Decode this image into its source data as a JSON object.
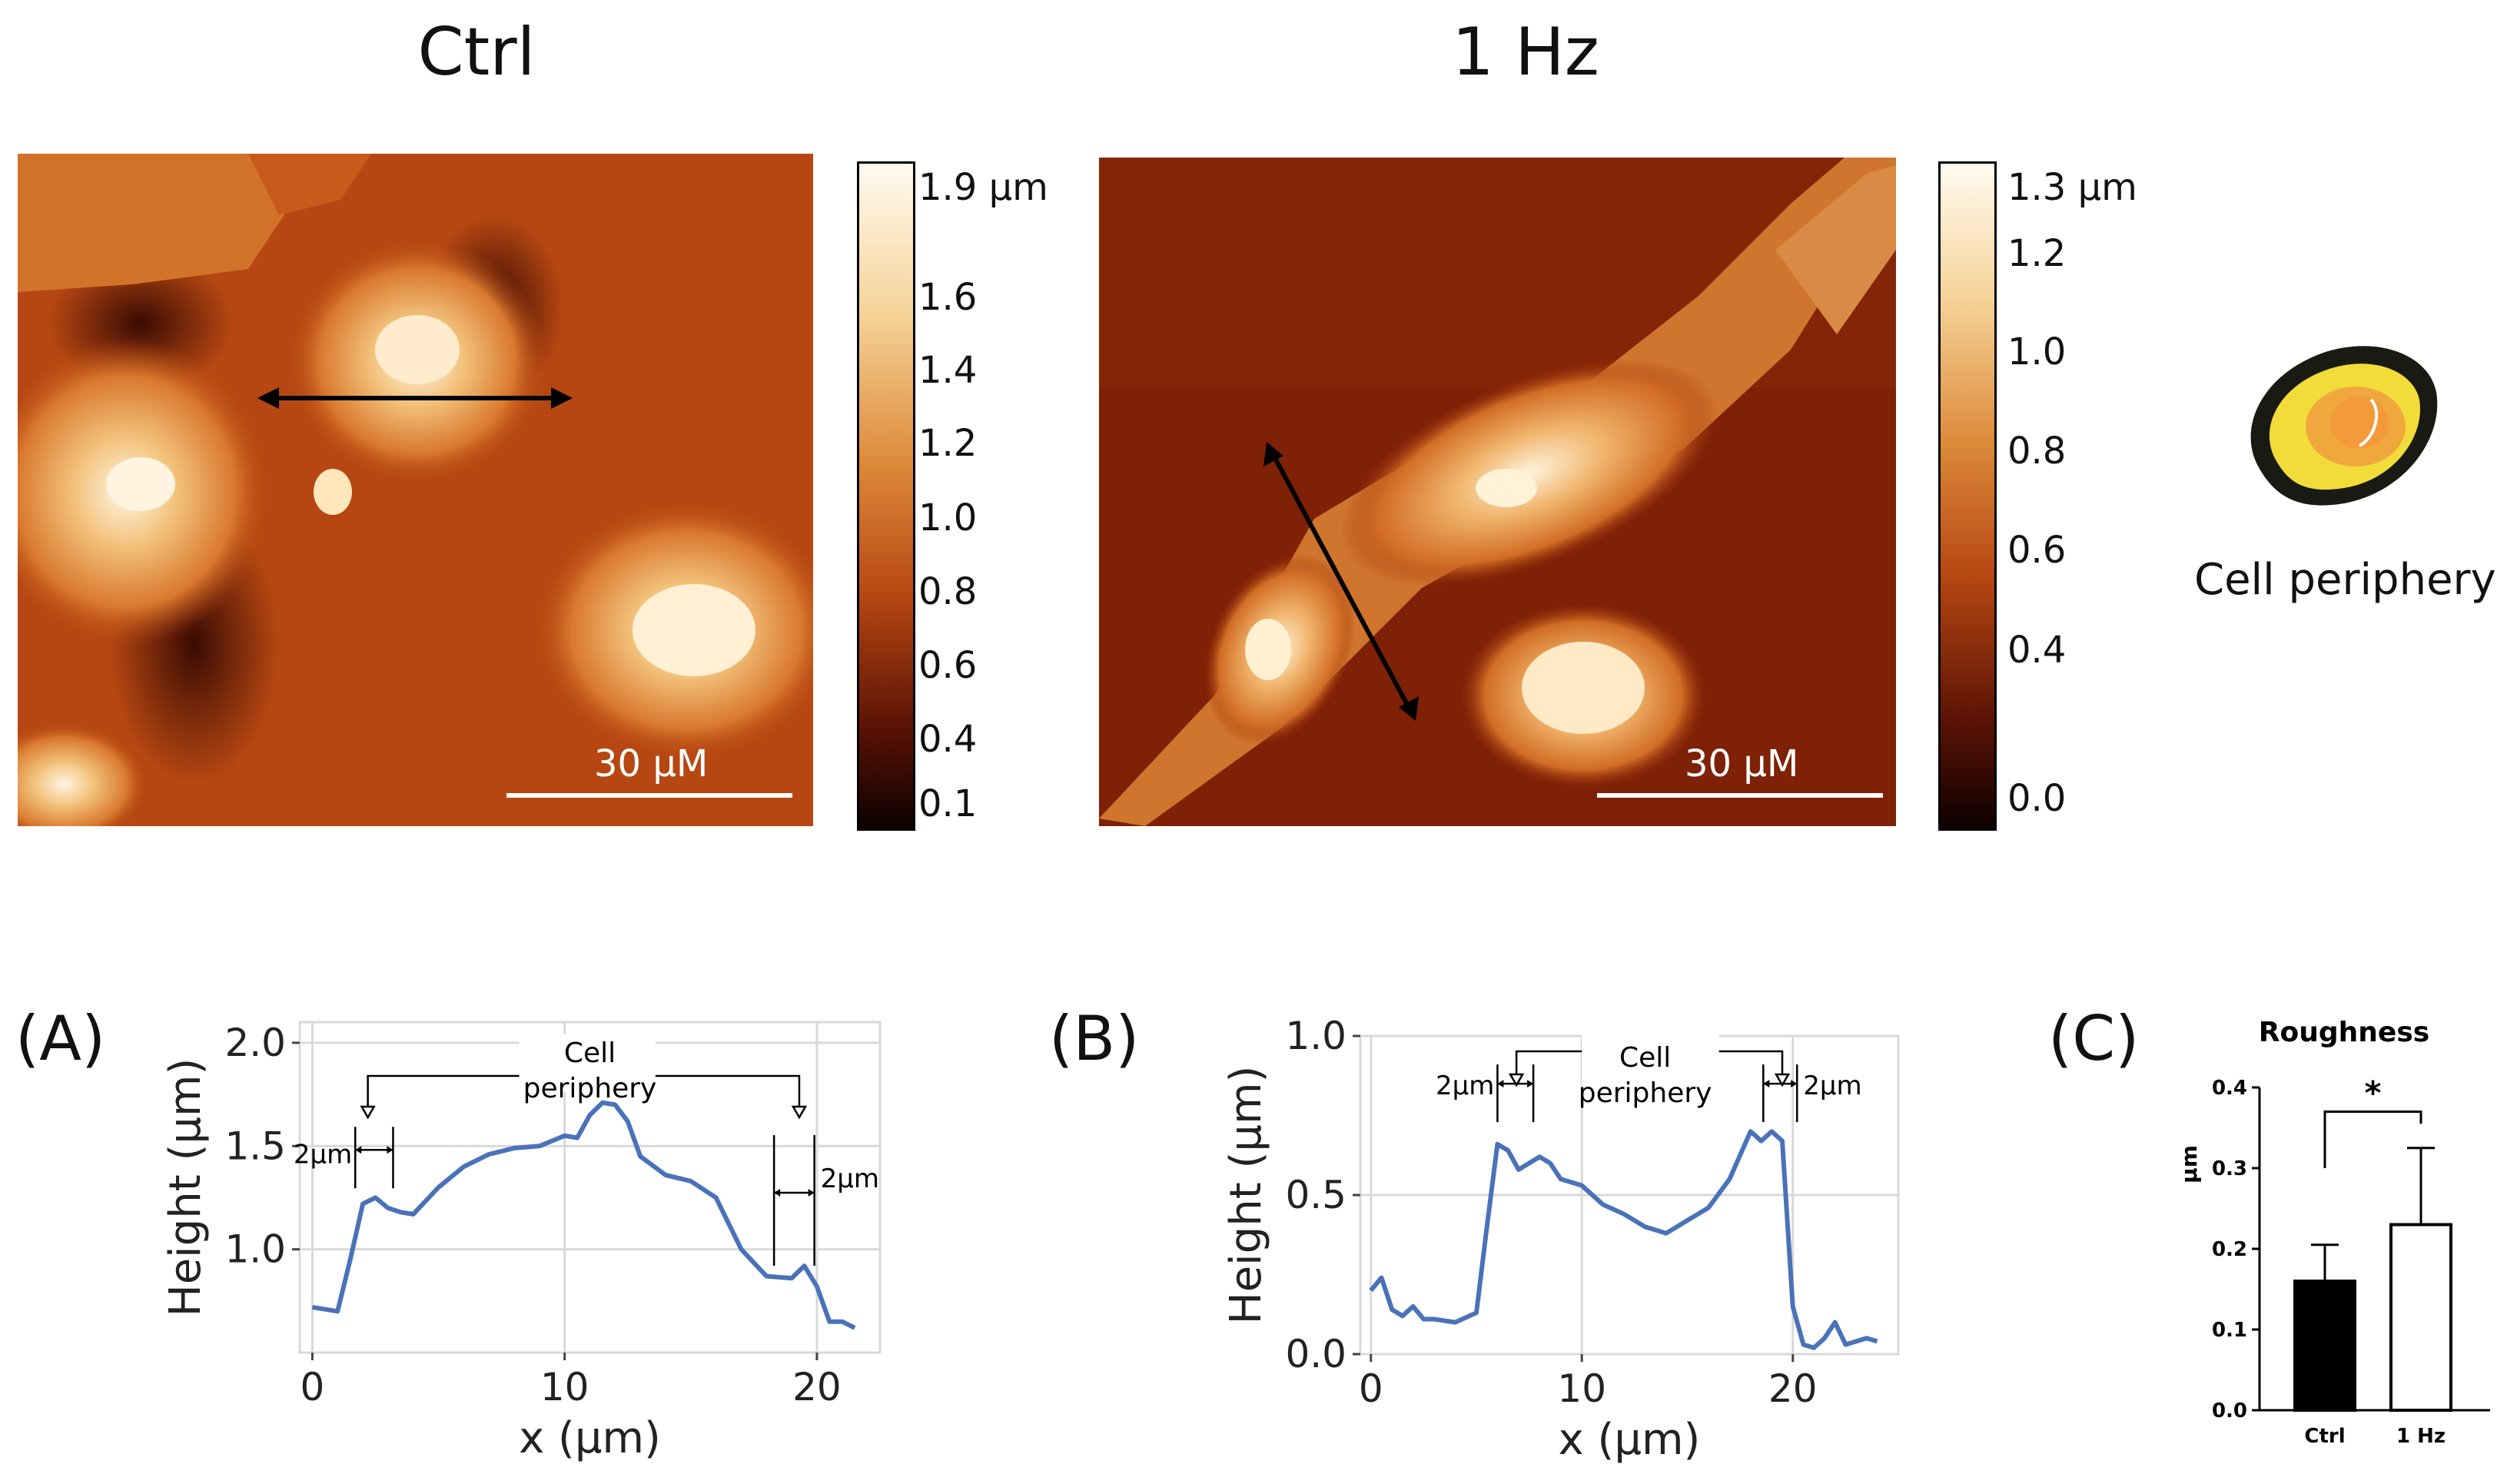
{
  "figure": {
    "titles": {
      "ctrl": "Ctrl",
      "hz": "1 Hz"
    },
    "colorbars": {
      "ctrl": {
        "max_label": "1.9 µm",
        "ticks": [
          "1.6",
          "1.4",
          "1.2",
          "1.0",
          "0.8",
          "0.6",
          "0.4",
          "0.1"
        ]
      },
      "hz": {
        "max_label": "1.3 µm",
        "ticks": [
          "1.2",
          "1.0",
          "0.8",
          "0.6",
          "0.4",
          "0.0"
        ]
      }
    },
    "scale_bars": {
      "ctrl": "30 μM",
      "hz": "30 μM"
    },
    "cell_periphery_label": "Cell periphery",
    "panel_letters": {
      "a": "(A)",
      "b": "(B)",
      "c": "(C)"
    },
    "colors": {
      "line": "#4a72b8",
      "grid": "#d9d9d9",
      "afm_dark": "#3a0a02",
      "afm_mid": "#b8400f",
      "afm_light": "#fff2d6"
    }
  },
  "chart_data": [
    {
      "id": "A",
      "type": "line",
      "xlabel": "x (μm)",
      "ylabel": "Height (μm)",
      "xticks": [
        0,
        10,
        20
      ],
      "yticks": [
        1.0,
        1.5,
        2.0
      ],
      "xlim": [
        -0.5,
        22.5
      ],
      "ylim": [
        0.5,
        2.1
      ],
      "annotation": {
        "label_line1": "Cell",
        "label_line2": "periphery",
        "width_label": "2μm"
      },
      "x": [
        0,
        1,
        1.5,
        2,
        2.5,
        3,
        3.5,
        4,
        5,
        6,
        7,
        8,
        9,
        10,
        10.5,
        11,
        11.5,
        12,
        12.5,
        13,
        14,
        15,
        16,
        17,
        18,
        19,
        19.5,
        20,
        20.5,
        21,
        21.5
      ],
      "y": [
        0.72,
        0.7,
        0.95,
        1.22,
        1.25,
        1.2,
        1.18,
        1.17,
        1.3,
        1.4,
        1.46,
        1.49,
        1.5,
        1.55,
        1.54,
        1.65,
        1.71,
        1.7,
        1.62,
        1.45,
        1.36,
        1.33,
        1.25,
        1.0,
        0.87,
        0.86,
        0.92,
        0.82,
        0.65,
        0.65,
        0.62
      ]
    },
    {
      "id": "B",
      "type": "line",
      "xlabel": "x (μm)",
      "ylabel": "Height (μm)",
      "xticks": [
        0,
        10,
        20
      ],
      "yticks": [
        0.0,
        0.5,
        1.0
      ],
      "xlim": [
        -0.5,
        25
      ],
      "ylim": [
        0,
        1.0
      ],
      "annotation": {
        "label_line1": "Cell",
        "label_line2": "periphery",
        "width_label_left": "2μm",
        "width_label_right": "2μm"
      },
      "x": [
        0,
        0.5,
        1,
        1.5,
        2,
        2.5,
        3,
        4,
        5,
        5.5,
        6,
        6.5,
        7,
        7.5,
        8,
        8.5,
        9,
        9.5,
        10,
        11,
        12,
        13,
        14,
        15,
        16,
        17,
        18,
        18.5,
        19,
        19.5,
        20,
        20.5,
        21,
        21.5,
        22,
        22.5,
        23,
        23.5,
        24
      ],
      "y": [
        0.2,
        0.24,
        0.14,
        0.12,
        0.15,
        0.11,
        0.11,
        0.1,
        0.13,
        0.4,
        0.66,
        0.64,
        0.58,
        0.6,
        0.62,
        0.6,
        0.55,
        0.54,
        0.53,
        0.47,
        0.44,
        0.4,
        0.38,
        0.42,
        0.46,
        0.55,
        0.7,
        0.67,
        0.7,
        0.67,
        0.15,
        0.03,
        0.02,
        0.05,
        0.1,
        0.03,
        0.04,
        0.05,
        0.04
      ],
      "tail_note": ""
    },
    {
      "id": "C",
      "type": "bar",
      "title": "Roughness",
      "ylabel": "µm",
      "categories": [
        "Ctrl",
        "1 Hz"
      ],
      "values": [
        0.16,
        0.23
      ],
      "errors": [
        0.045,
        0.095
      ],
      "fills": [
        "#000000",
        "#ffffff"
      ],
      "yticks": [
        "0.0",
        "0.1",
        "0.2",
        "0.3",
        "0.4"
      ],
      "ylim": [
        0,
        0.4
      ],
      "significance": "*"
    }
  ]
}
